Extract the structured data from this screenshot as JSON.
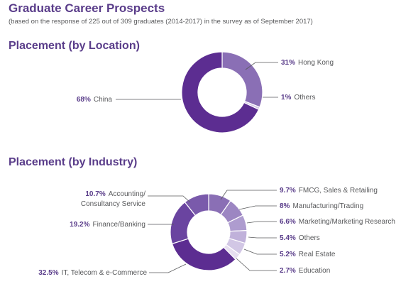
{
  "header": {
    "title": "Graduate Career Prospects",
    "subtitle": "(based on the response of 225 out of 309 graduates (2014-2017) in the survey as of September 2017)"
  },
  "chart_data": [
    {
      "type": "pie",
      "donut": true,
      "title": "Placement (by Location)",
      "unit": "%",
      "categories": [
        "China",
        "Hong Kong",
        "Others"
      ],
      "values": [
        68,
        31,
        1
      ],
      "labels": [
        {
          "pct": "68%",
          "text": "China"
        },
        {
          "pct": "31%",
          "text": "Hong Kong"
        },
        {
          "pct": "1%",
          "text": "Others"
        }
      ],
      "colors": [
        "#5c2d91",
        "#8a6fb5",
        "#d4c8e6"
      ],
      "legend": "callout-labels"
    },
    {
      "type": "pie",
      "donut": true,
      "title": "Placement (by Industry)",
      "unit": "%",
      "categories": [
        "IT, Telecom & e-Commerce",
        "Finance/Banking",
        "Accounting/Consultancy Service",
        "FMCG, Sales & Retailing",
        "Manufacturing/Trading",
        "Marketing/Marketing Research",
        "Others",
        "Real Estate",
        "Education"
      ],
      "values": [
        32.5,
        19.2,
        10.7,
        9.7,
        8,
        6.6,
        5.4,
        5.2,
        2.7
      ],
      "labels": [
        {
          "pct": "32.5%",
          "text": "IT, Telecom & e-Commerce"
        },
        {
          "pct": "19.2%",
          "text": "Finance/Banking"
        },
        {
          "pct": "10.7%",
          "text": "Accounting/",
          "text2": "Consultancy Service"
        },
        {
          "pct": "9.7%",
          "text": "FMCG, Sales & Retailing"
        },
        {
          "pct": "8%",
          "text": "Manufacturing/Trading"
        },
        {
          "pct": "6.6%",
          "text": "Marketing/Marketing Research"
        },
        {
          "pct": "5.4%",
          "text": "Others"
        },
        {
          "pct": "5.2%",
          "text": "Real Estate"
        },
        {
          "pct": "2.7%",
          "text": "Education"
        }
      ],
      "colors": [
        "#5c2d91",
        "#6a44a0",
        "#7a5aab",
        "#8a6fb5",
        "#9c86c2",
        "#ae9ccf",
        "#c0b1da",
        "#d2c7e5",
        "#e6def0"
      ],
      "legend": "callout-labels"
    }
  ]
}
